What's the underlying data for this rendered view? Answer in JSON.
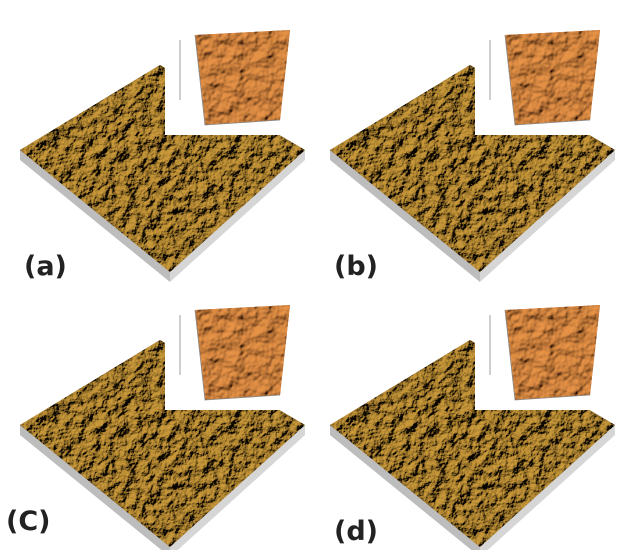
{
  "figure": {
    "panels": [
      {
        "label": "(a)"
      },
      {
        "label": "(b)"
      },
      {
        "label": "(C)"
      },
      {
        "label": "(d)"
      }
    ]
  }
}
